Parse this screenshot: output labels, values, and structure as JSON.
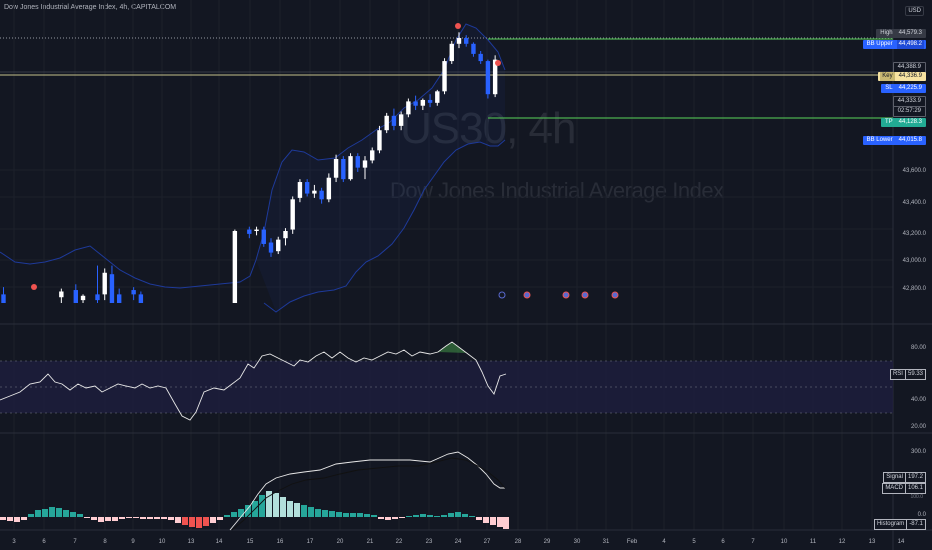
{
  "header": {
    "title": "Dow Jones Industrial Average Index, 4h, CAPITALCOM"
  },
  "watermark": {
    "symbol": "US30, 4h",
    "name": "Dow Jones Industrial Average Index"
  },
  "currency": "USD",
  "price_tags": {
    "high": {
      "label": "High",
      "value": "44,579.3",
      "color": "#787b86"
    },
    "bb_upper": {
      "label": "BB Upper",
      "value": "44,498.2",
      "color": "#2962ff"
    },
    "current": {
      "value": "44,388.9",
      "color": "#b2b5be"
    },
    "key": {
      "label": "Key",
      "value": "44,336.9",
      "color": "#f7e3a1"
    },
    "sl": {
      "label": "SL",
      "value": "44,225.9",
      "color": "#2962ff"
    },
    "price": {
      "value": "44,333.9",
      "color": "#b2b5be"
    },
    "time": {
      "value": "02:57:29",
      "color": "#b2b5be"
    },
    "tp": {
      "label": "TP",
      "value": "44,128.3",
      "color": "#22ab94"
    },
    "bb_lower": {
      "label": "BB Lower",
      "value": "44,015.8",
      "color": "#2962ff"
    }
  },
  "price_axis": [
    "43,600.0",
    "43,400.0",
    "43,200.0",
    "43,000.0",
    "42,800.0"
  ],
  "rsi": {
    "label": "RSI",
    "value": "59.33",
    "axis": [
      "80.00",
      "40.00",
      "20.00"
    ]
  },
  "macd": {
    "axis": [
      "300.0",
      "0.0"
    ],
    "signal": {
      "label": "Signal",
      "value": "197.2"
    },
    "macd": {
      "label": "MACD",
      "value": "106.1"
    },
    "macd_sub": "100.0",
    "histogram": {
      "label": "Histogram",
      "value": "-87.1"
    }
  },
  "time_axis": [
    "3",
    "6",
    "7",
    "8",
    "9",
    "10",
    "13",
    "14",
    "15",
    "16",
    "17",
    "20",
    "21",
    "22",
    "23",
    "24",
    "27",
    "28",
    "29",
    "30",
    "31",
    "Feb",
    "4",
    "5",
    "6",
    "7",
    "10",
    "11",
    "12",
    "13",
    "14"
  ],
  "colors": {
    "background": "#131722",
    "bull": "#ffffff",
    "bear": "#2962ff",
    "bb_band": "#1e3a8a",
    "high_line": "#4caf50",
    "key_line": "#c6c08a",
    "rsi_fill": "#1e1e3f",
    "hist_pos": "#26a69a",
    "hist_neg": "#ef5350"
  },
  "chart_data": {
    "type": "candlestick",
    "title": "Dow Jones Industrial Average Index, 4h, CAPITALCOM",
    "ylim": [
      42700,
      44700
    ],
    "candles": [
      {
        "i": 0,
        "o": 42760,
        "h": 42810,
        "l": 42700,
        "c": 42700
      },
      {
        "i": 8,
        "o": 42740,
        "h": 42800,
        "l": 42700,
        "c": 42780
      },
      {
        "i": 10,
        "o": 42790,
        "h": 42830,
        "l": 42700,
        "c": 42700
      },
      {
        "i": 11,
        "o": 42720,
        "h": 42760,
        "l": 42700,
        "c": 42750
      },
      {
        "i": 13,
        "o": 42760,
        "h": 42960,
        "l": 42700,
        "c": 42720
      },
      {
        "i": 14,
        "o": 42760,
        "h": 42940,
        "l": 42720,
        "c": 42910
      },
      {
        "i": 15,
        "o": 42900,
        "h": 42960,
        "l": 42700,
        "c": 42700
      },
      {
        "i": 16,
        "o": 42760,
        "h": 42800,
        "l": 42700,
        "c": 42700
      },
      {
        "i": 18,
        "o": 42790,
        "h": 42810,
        "l": 42720,
        "c": 42760
      },
      {
        "i": 19,
        "o": 42760,
        "h": 42780,
        "l": 42700,
        "c": 42700
      },
      {
        "i": 32,
        "o": 42700,
        "h": 43210,
        "l": 42700,
        "c": 43200
      },
      {
        "i": 34,
        "o": 43210,
        "h": 43230,
        "l": 43150,
        "c": 43180
      },
      {
        "i": 35,
        "o": 43200,
        "h": 43230,
        "l": 43170,
        "c": 43210
      },
      {
        "i": 36,
        "o": 43210,
        "h": 43230,
        "l": 43090,
        "c": 43110
      },
      {
        "i": 37,
        "o": 43120,
        "h": 43150,
        "l": 43020,
        "c": 43050
      },
      {
        "i": 38,
        "o": 43060,
        "h": 43160,
        "l": 43040,
        "c": 43140
      },
      {
        "i": 39,
        "o": 43150,
        "h": 43220,
        "l": 43100,
        "c": 43200
      },
      {
        "i": 40,
        "o": 43210,
        "h": 43440,
        "l": 43180,
        "c": 43420
      },
      {
        "i": 41,
        "o": 43430,
        "h": 43560,
        "l": 43400,
        "c": 43540
      },
      {
        "i": 42,
        "o": 43540,
        "h": 43560,
        "l": 43440,
        "c": 43460
      },
      {
        "i": 43,
        "o": 43460,
        "h": 43520,
        "l": 43430,
        "c": 43480
      },
      {
        "i": 44,
        "o": 43480,
        "h": 43500,
        "l": 43390,
        "c": 43420
      },
      {
        "i": 45,
        "o": 43420,
        "h": 43600,
        "l": 43400,
        "c": 43570
      },
      {
        "i": 46,
        "o": 43570,
        "h": 43730,
        "l": 43540,
        "c": 43700
      },
      {
        "i": 47,
        "o": 43700,
        "h": 43720,
        "l": 43540,
        "c": 43560
      },
      {
        "i": 48,
        "o": 43560,
        "h": 43740,
        "l": 43550,
        "c": 43720
      },
      {
        "i": 49,
        "o": 43720,
        "h": 43740,
        "l": 43610,
        "c": 43640
      },
      {
        "i": 50,
        "o": 43640,
        "h": 43720,
        "l": 43560,
        "c": 43690
      },
      {
        "i": 51,
        "o": 43690,
        "h": 43780,
        "l": 43670,
        "c": 43760
      },
      {
        "i": 52,
        "o": 43760,
        "h": 43930,
        "l": 43740,
        "c": 43900
      },
      {
        "i": 53,
        "o": 43900,
        "h": 44020,
        "l": 43880,
        "c": 44000
      },
      {
        "i": 54,
        "o": 44000,
        "h": 44050,
        "l": 43900,
        "c": 43930
      },
      {
        "i": 55,
        "o": 43930,
        "h": 44030,
        "l": 43900,
        "c": 44010
      },
      {
        "i": 56,
        "o": 44010,
        "h": 44120,
        "l": 43990,
        "c": 44100
      },
      {
        "i": 57,
        "o": 44100,
        "h": 44140,
        "l": 44040,
        "c": 44070
      },
      {
        "i": 58,
        "o": 44070,
        "h": 44120,
        "l": 44040,
        "c": 44110
      },
      {
        "i": 59,
        "o": 44110,
        "h": 44150,
        "l": 44060,
        "c": 44090
      },
      {
        "i": 60,
        "o": 44090,
        "h": 44180,
        "l": 44070,
        "c": 44170
      },
      {
        "i": 61,
        "o": 44170,
        "h": 44400,
        "l": 44150,
        "c": 44380
      },
      {
        "i": 62,
        "o": 44380,
        "h": 44520,
        "l": 44360,
        "c": 44500
      },
      {
        "i": 63,
        "o": 44500,
        "h": 44580,
        "l": 44470,
        "c": 44540
      },
      {
        "i": 64,
        "o": 44540,
        "h": 44560,
        "l": 44480,
        "c": 44500
      },
      {
        "i": 65,
        "o": 44500,
        "h": 44510,
        "l": 44410,
        "c": 44430
      },
      {
        "i": 66,
        "o": 44430,
        "h": 44450,
        "l": 44360,
        "c": 44380
      },
      {
        "i": 67,
        "o": 44380,
        "h": 44390,
        "l": 44120,
        "c": 44150
      },
      {
        "i": 68,
        "o": 44150,
        "h": 44420,
        "l": 44130,
        "c": 44390
      }
    ]
  }
}
